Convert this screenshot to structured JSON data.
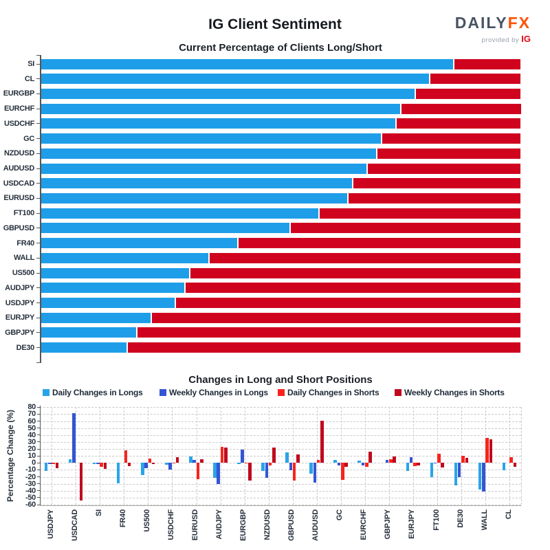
{
  "header": {
    "title": "IG Client Sentiment",
    "logo": {
      "daily": "DAILY",
      "fx": "FX",
      "tagline": "provided by",
      "brand": "IG"
    }
  },
  "colors": {
    "long_blue": "#1e9ee8",
    "short_red": "#d0031f",
    "daily_longs": "#29a4e9",
    "weekly_longs": "#3355d4",
    "daily_shorts": "#f8231d",
    "weekly_shorts": "#c00a1e",
    "label_text": "#26303c",
    "grid": "#c9c9c9"
  },
  "chart_data": [
    {
      "type": "bar",
      "orientation": "horizontal",
      "stacked": true,
      "title": "Current Percentage of Clients Long/Short",
      "xlim": [
        0,
        100
      ],
      "grid": false,
      "categories": [
        "SI",
        "CL",
        "EURGBP",
        "EURCHF",
        "USDCHF",
        "GC",
        "NZDUSD",
        "AUDUSD",
        "USDCAD",
        "EURUSD",
        "FT100",
        "GBPUSD",
        "FR40",
        "WALL",
        "US500",
        "AUDJPY",
        "USDJPY",
        "EURJPY",
        "GBPJPY",
        "DE30"
      ],
      "series": [
        {
          "name": "Percent Long",
          "color": "#1e9ee8",
          "values": [
            86,
            81,
            78,
            75,
            74,
            71,
            70,
            68,
            65,
            64,
            58,
            52,
            41,
            35,
            31,
            30,
            28,
            23,
            20,
            18
          ]
        },
        {
          "name": "Percent Short",
          "color": "#d0031f",
          "values": [
            14,
            19,
            22,
            25,
            26,
            29,
            30,
            32,
            35,
            36,
            42,
            48,
            59,
            65,
            69,
            70,
            72,
            77,
            80,
            82
          ]
        }
      ]
    },
    {
      "type": "bar",
      "orientation": "vertical",
      "title": "Changes in Long and Short Positions",
      "ylabel": "Percentage Change (%)",
      "ylim": [
        -60,
        80
      ],
      "yticks": [
        80,
        70,
        60,
        50,
        40,
        30,
        20,
        10,
        0,
        -10,
        -20,
        -30,
        -40,
        -50,
        -60
      ],
      "grid": true,
      "legend_position": "top",
      "categories": [
        "USDJPY",
        "USDCAD",
        "SI",
        "FR40",
        "US500",
        "USDCHF",
        "EURUSD",
        "AUDJPY",
        "EURGBP",
        "NZDUSD",
        "GBPUSD",
        "AUDUSD",
        "GC",
        "EURCHF",
        "GBPJPY",
        "EURJPY",
        "FT100",
        "DE30",
        "WALL",
        "CL"
      ],
      "series": [
        {
          "name": "Daily Changes in Longs",
          "color": "#29a4e9",
          "values": [
            -12,
            5,
            -2,
            -29,
            -17,
            -3,
            9,
            -21,
            -2,
            -12,
            15,
            -16,
            4,
            3,
            0,
            -12,
            -20,
            -32,
            -38,
            -11
          ]
        },
        {
          "name": "Weekly Changes in Longs",
          "color": "#3355d4",
          "values": [
            -2,
            71,
            -2,
            0,
            -8,
            -10,
            4,
            -30,
            19,
            -21,
            -11,
            -28,
            -4,
            -4,
            4,
            8,
            -1,
            -20,
            -41,
            0
          ]
        },
        {
          "name": "Daily Changes in Shorts",
          "color": "#f8231d",
          "values": [
            -2,
            0,
            -6,
            18,
            6,
            -1,
            -23,
            23,
            -1,
            -4,
            -25,
            4,
            -24,
            -6,
            5,
            -5,
            13,
            10,
            36,
            8
          ]
        },
        {
          "name": "Weekly Changes in Shorts",
          "color": "#c00a1e",
          "values": [
            -8,
            -54,
            -9,
            -5,
            -2,
            8,
            5,
            22,
            -25,
            22,
            12,
            61,
            -6,
            16,
            9,
            -4,
            -7,
            7,
            34,
            -6
          ]
        }
      ]
    }
  ]
}
